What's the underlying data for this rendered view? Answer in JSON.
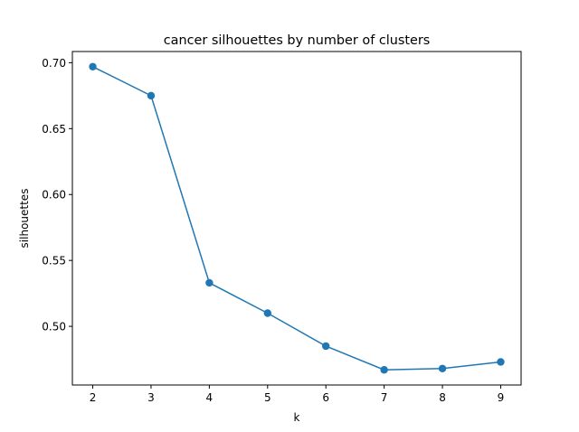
{
  "chart_data": {
    "type": "line",
    "title": "cancer silhouettes by number of clusters",
    "xlabel": "k",
    "ylabel": "silhouettes",
    "x": [
      2,
      3,
      4,
      5,
      6,
      7,
      8,
      9
    ],
    "series": [
      {
        "values": [
          0.697,
          0.675,
          0.533,
          0.51,
          0.485,
          0.467,
          0.468,
          0.473
        ],
        "color": "#1f77b4",
        "marker": "circle"
      }
    ],
    "xlim": [
      1.65,
      9.35
    ],
    "ylim": [
      0.4555,
      0.7085
    ],
    "xticks": [
      "2",
      "3",
      "4",
      "5",
      "6",
      "7",
      "8",
      "9"
    ],
    "yticks": [
      "0.50",
      "0.55",
      "0.60",
      "0.65",
      "0.70"
    ],
    "grid": false,
    "legend": "none"
  }
}
